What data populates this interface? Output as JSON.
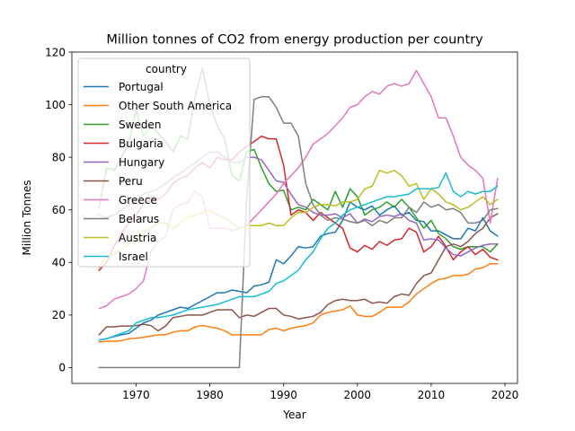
{
  "chart_data": {
    "type": "line",
    "title": "Million tonnes of CO2 from energy production per country",
    "xlabel": "Year",
    "ylabel": "Million Tonnes",
    "xlim": [
      1961.3,
      2021.7
    ],
    "ylim": [
      -6,
      120
    ],
    "x_ticks": [
      1970,
      1980,
      1990,
      2000,
      2010,
      2020
    ],
    "y_ticks": [
      0,
      20,
      40,
      60,
      80,
      100,
      120
    ],
    "legend": {
      "title": "country",
      "placement": "top-left"
    },
    "x": [
      1965,
      1966,
      1967,
      1968,
      1969,
      1970,
      1971,
      1972,
      1973,
      1974,
      1975,
      1976,
      1977,
      1978,
      1979,
      1980,
      1981,
      1982,
      1983,
      1984,
      1985,
      1986,
      1987,
      1988,
      1989,
      1990,
      1991,
      1992,
      1993,
      1994,
      1995,
      1996,
      1997,
      1998,
      1999,
      2000,
      2001,
      2002,
      2003,
      2004,
      2005,
      2006,
      2007,
      2008,
      2009,
      2010,
      2011,
      2012,
      2013,
      2014,
      2015,
      2016,
      2017,
      2018,
      2019
    ],
    "series": [
      {
        "name": "Portugal",
        "color": "#1f77b4",
        "values": [
          10.5,
          11,
          11.8,
          12.5,
          13,
          15,
          17,
          18,
          20,
          21,
          22,
          23,
          22.5,
          24,
          25.5,
          27,
          28.5,
          28.5,
          29.5,
          29,
          28.5,
          31,
          31.5,
          32.5,
          41,
          39.5,
          42.5,
          46,
          45.5,
          46,
          50,
          51,
          51.5,
          56,
          63,
          61,
          60,
          61.5,
          58,
          60,
          61.5,
          58,
          59,
          56,
          55.5,
          52,
          52,
          50.5,
          49,
          49,
          53,
          52,
          57,
          52,
          50
        ]
      },
      {
        "name": "Other South America",
        "color": "#ff7f0e",
        "values": [
          9.8,
          10,
          10,
          10.2,
          11,
          11.2,
          11.5,
          12,
          12.5,
          12.5,
          13.5,
          14,
          14,
          15.5,
          16,
          15.5,
          15,
          14,
          12.5,
          12.5,
          12.5,
          12.5,
          12.5,
          14.5,
          15,
          14,
          15,
          15.5,
          16,
          17,
          20,
          21,
          21.5,
          22,
          23.5,
          20,
          19.5,
          19.5,
          21,
          23,
          23,
          23,
          25,
          28,
          30,
          32,
          33.5,
          34,
          35,
          35,
          35.5,
          37.5,
          38,
          39.5,
          39.5
        ]
      },
      {
        "name": "Sweden",
        "color": "#2ca02c",
        "values": [
          61,
          76,
          75,
          80,
          85,
          98,
          88,
          92,
          89,
          86,
          82,
          88,
          87,
          103,
          114,
          100,
          92,
          87,
          73,
          71,
          82,
          83,
          76,
          70,
          67,
          67.5,
          60,
          61,
          60,
          64,
          62,
          60,
          67,
          61,
          68,
          65,
          58,
          60,
          61,
          63,
          61,
          64,
          61,
          57,
          53,
          56,
          51,
          49,
          46,
          45,
          46,
          46,
          46,
          44,
          47
        ]
      },
      {
        "name": "Bulgaria",
        "color": "#d62728",
        "values": [
          37,
          40,
          46,
          51,
          55,
          58,
          62,
          64,
          64,
          66,
          70,
          72,
          73,
          76,
          78,
          76,
          80,
          79,
          79,
          82,
          84,
          86,
          88,
          87,
          87,
          77,
          58,
          60,
          59,
          56,
          59,
          57,
          55,
          53,
          45.5,
          44,
          46.5,
          45,
          48,
          46.5,
          48.5,
          49,
          53,
          51.5,
          44,
          46,
          50,
          46,
          41,
          44,
          46,
          43,
          45,
          42,
          41
        ]
      },
      {
        "name": "Hungary",
        "color": "#9467bd",
        "values": [
          58,
          57,
          58,
          60,
          62,
          64,
          66,
          67,
          68,
          70,
          72,
          74,
          76,
          78,
          80,
          82,
          82,
          80,
          78,
          78,
          80,
          80,
          79,
          75,
          71,
          70.5,
          66,
          62,
          61,
          59,
          58,
          58,
          58.5,
          57,
          58.5,
          55,
          56.5,
          55.5,
          57.5,
          58,
          57.5,
          58.5,
          56,
          55,
          48.5,
          49,
          48.5,
          45.5,
          43,
          42.5,
          44,
          45.5,
          46.5,
          47,
          47
        ]
      },
      {
        "name": "Peru",
        "color": "#8c564b",
        "values": [
          12.5,
          15.5,
          15.5,
          15.8,
          15.8,
          16,
          16.5,
          16,
          14,
          15.8,
          19,
          19.5,
          20,
          20,
          20,
          21,
          22,
          22,
          22,
          19,
          20,
          19.5,
          21,
          22.5,
          22.5,
          20,
          19.5,
          18.5,
          19,
          19.5,
          21,
          24,
          25.5,
          26,
          25.5,
          25.5,
          26,
          24.5,
          25,
          24.5,
          27,
          28,
          27.5,
          32,
          35,
          36,
          41,
          46,
          47,
          46,
          48,
          51,
          53,
          57,
          58.5
        ]
      },
      {
        "name": "Greece",
        "color": "#e377c2",
        "values": [
          22.5,
          23.5,
          26,
          27,
          28,
          30,
          33,
          44,
          48,
          50,
          60,
          62,
          63,
          67,
          65,
          53,
          53,
          53,
          52,
          53,
          54,
          57,
          60,
          63,
          66,
          70,
          73,
          76,
          80,
          85,
          87,
          89,
          92,
          95,
          99,
          100,
          103,
          105,
          104,
          107,
          108,
          107,
          108,
          113,
          108,
          103,
          95,
          95,
          88,
          80,
          77,
          75,
          72,
          55,
          72
        ]
      },
      {
        "name": "Belarus",
        "color": "#7f7f7f",
        "values": [
          0,
          0,
          0,
          0,
          0,
          0,
          0,
          0,
          0,
          0,
          0,
          0,
          0,
          0,
          0,
          0,
          0,
          0,
          0,
          0,
          65,
          102,
          103,
          103,
          99,
          93,
          93,
          88,
          70,
          62,
          58,
          56,
          57,
          56.5,
          55.5,
          55,
          56,
          54,
          56,
          55,
          57,
          57,
          61,
          59,
          63,
          61,
          62,
          60,
          60.5,
          59,
          55,
          55,
          56,
          60,
          60.5
        ]
      },
      {
        "name": "Austria",
        "color": "#bcbd22",
        "values": [
          38,
          42,
          43,
          45,
          47,
          49,
          52,
          53,
          55,
          55,
          53,
          55,
          57,
          58,
          59,
          60,
          58,
          57,
          55,
          53,
          54,
          54,
          54,
          55,
          54,
          54,
          57,
          59,
          59,
          61,
          62,
          62,
          61.5,
          63,
          63,
          64,
          68,
          69,
          75,
          74,
          75,
          73,
          69,
          70,
          64,
          68,
          66,
          63,
          62,
          60,
          61,
          63,
          65,
          62,
          64
        ]
      },
      {
        "name": "Israel",
        "color": "#17becf",
        "values": [
          10.5,
          11,
          12,
          13,
          14,
          17,
          18,
          19,
          19,
          19.5,
          20,
          21,
          22,
          22.5,
          23,
          23.5,
          24,
          25,
          26,
          27,
          27,
          27,
          28,
          29,
          32,
          33,
          35,
          37,
          41,
          44,
          49,
          53,
          55,
          58,
          60,
          61,
          62,
          63,
          64,
          65,
          65,
          65.5,
          66,
          68,
          68,
          68,
          68.5,
          74,
          67,
          65,
          67,
          66,
          67,
          67,
          69
        ]
      }
    ]
  }
}
